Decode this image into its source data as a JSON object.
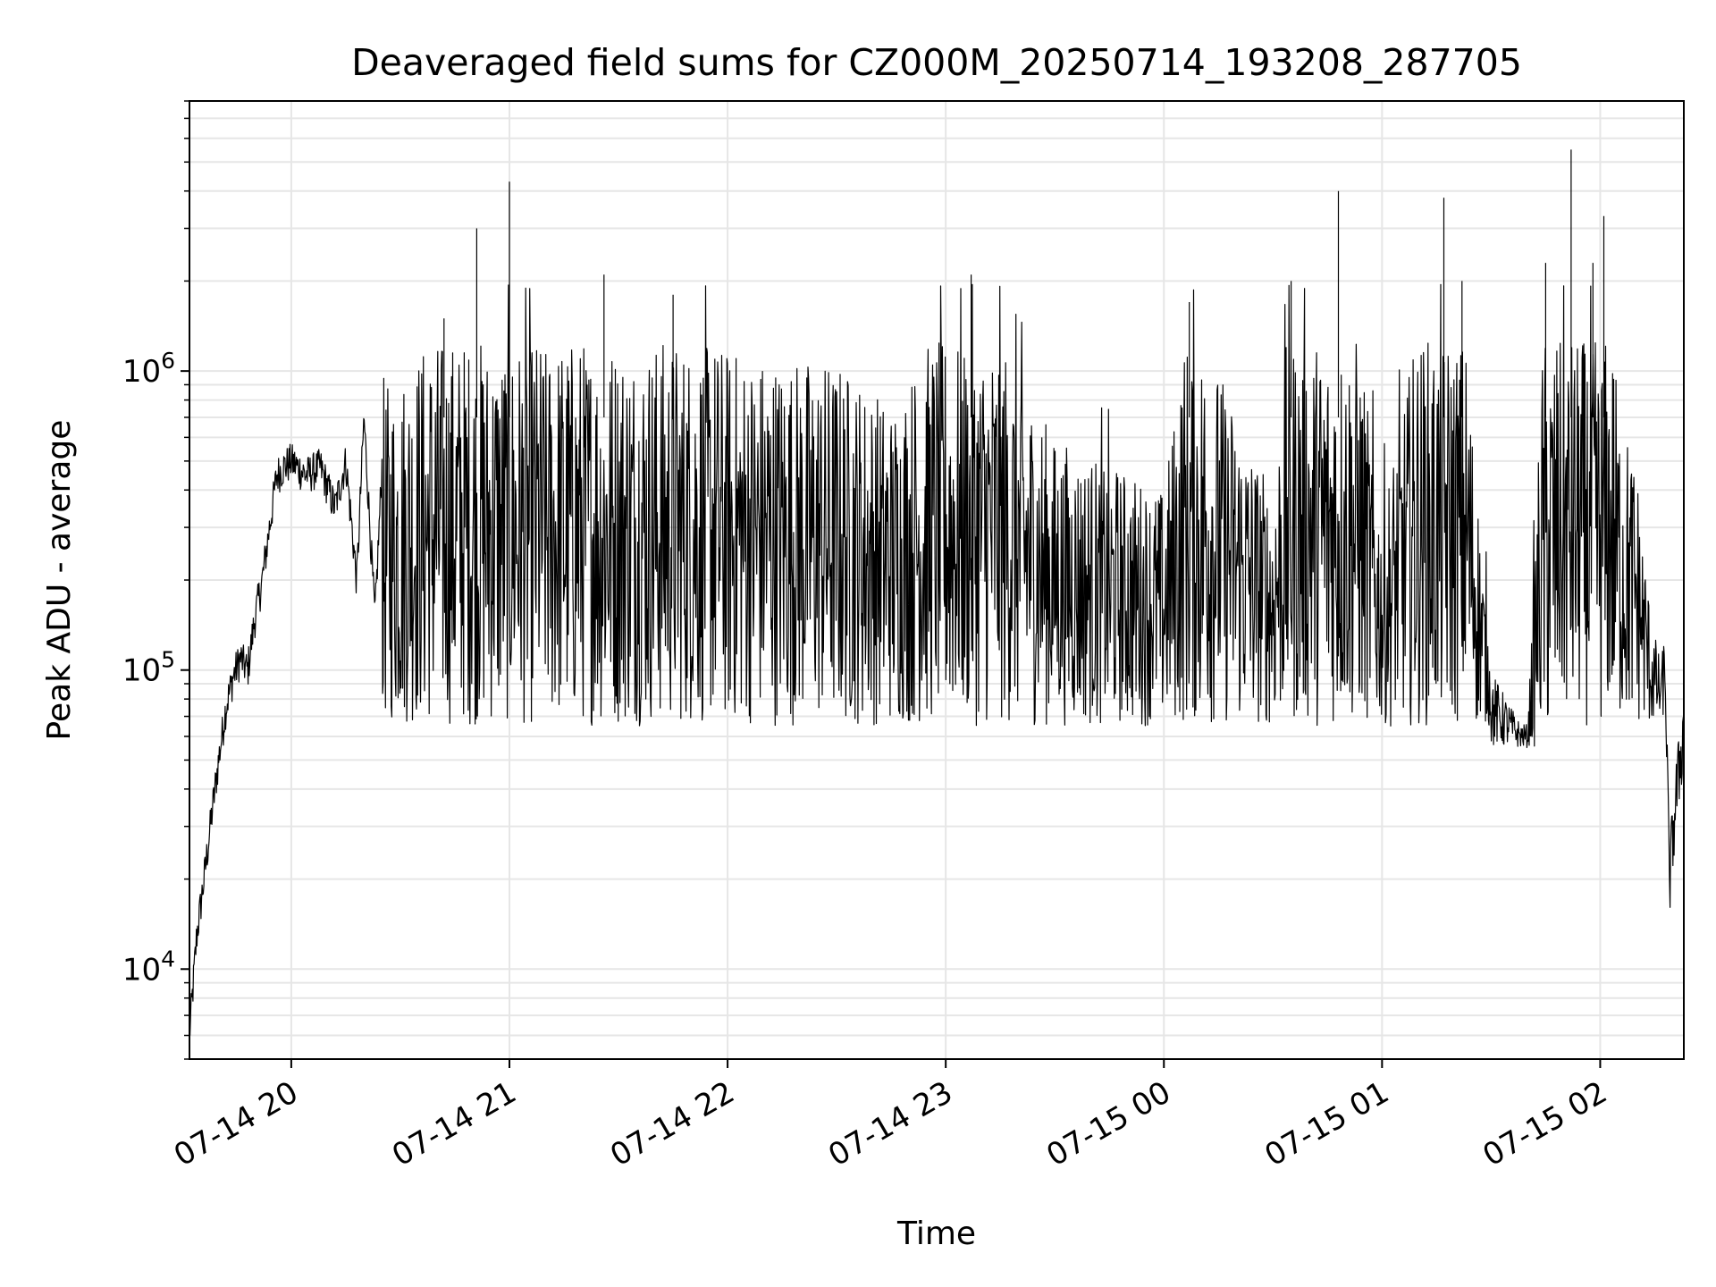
{
  "chart_data": {
    "type": "line",
    "title": "Deaveraged field sums for CZ000M_20250714_193208_287705",
    "xlabel": "Time",
    "ylabel": "Peak ADU - average",
    "yscale": "log",
    "ylim": [
      5000,
      8000000
    ],
    "xlim": [
      "2025-07-14 19:32",
      "2025-07-15 02:23"
    ],
    "grid": true,
    "legend": "none",
    "x_ticks": [
      {
        "t": "2025-07-14 20:00",
        "label": "07-14 20"
      },
      {
        "t": "2025-07-14 21:00",
        "label": "07-14 21"
      },
      {
        "t": "2025-07-14 22:00",
        "label": "07-14 22"
      },
      {
        "t": "2025-07-14 23:00",
        "label": "07-14 23"
      },
      {
        "t": "2025-07-15 00:00",
        "label": "07-15 00"
      },
      {
        "t": "2025-07-15 01:00",
        "label": "07-15 01"
      },
      {
        "t": "2025-07-15 02:00",
        "label": "07-15 02"
      }
    ],
    "y_ticks": [
      {
        "value": 10000,
        "base": "10",
        "exp": "4"
      },
      {
        "value": 100000,
        "base": "10",
        "exp": "5"
      },
      {
        "value": 1000000,
        "base": "10",
        "exp": "6"
      }
    ],
    "line_color": "#000000",
    "series": [
      {
        "points": [
          [
            "2025-07-14 19:32",
            6000
          ],
          [
            "2025-07-14 19:34",
            13000
          ],
          [
            "2025-07-14 19:36",
            20000
          ],
          [
            "2025-07-14 19:38",
            32000
          ],
          [
            "2025-07-14 19:40",
            50000
          ],
          [
            "2025-07-14 19:42",
            75000
          ],
          [
            "2025-07-14 19:44",
            95000
          ],
          [
            "2025-07-14 19:46",
            110000
          ],
          [
            "2025-07-14 19:48",
            100000
          ],
          [
            "2025-07-14 19:50",
            150000
          ],
          [
            "2025-07-14 19:52",
            200000
          ],
          [
            "2025-07-14 19:54",
            300000
          ],
          [
            "2025-07-14 19:56",
            450000
          ],
          [
            "2025-07-14 19:58",
            480000
          ],
          [
            "2025-07-14 20:00",
            500000
          ],
          [
            "2025-07-14 20:04",
            450000
          ],
          [
            "2025-07-14 20:08",
            480000
          ],
          [
            "2025-07-14 20:12",
            350000
          ],
          [
            "2025-07-14 20:15",
            500000
          ],
          [
            "2025-07-14 20:18",
            200000
          ],
          [
            "2025-07-14 20:20",
            700000
          ],
          [
            "2025-07-14 20:23",
            150000
          ],
          [
            "2025-07-14 20:26",
            900000
          ],
          [
            "2025-07-14 20:42",
            1500000
          ],
          [
            "2025-07-14 20:51",
            3000000
          ],
          [
            "2025-07-14 20:57",
            1300000
          ],
          [
            "2025-07-14 21:00",
            4300000
          ],
          [
            "2025-07-14 21:10",
            1200000
          ],
          [
            "2025-07-14 21:26",
            2100000
          ],
          [
            "2025-07-14 21:45",
            1800000
          ],
          [
            "2025-07-14 22:00",
            1200000
          ],
          [
            "2025-07-14 22:30",
            1100000
          ],
          [
            "2025-07-14 22:45",
            800000
          ],
          [
            "2025-07-14 23:07",
            2100000
          ],
          [
            "2025-07-14 23:30",
            600000
          ],
          [
            "2025-07-14 23:45",
            500000
          ],
          [
            "2025-07-15 00:00",
            400000
          ],
          [
            "2025-07-15 00:07",
            1700000
          ],
          [
            "2025-07-15 00:30",
            400000
          ],
          [
            "2025-07-15 00:35",
            2000000
          ],
          [
            "2025-07-15 00:48",
            4000000
          ],
          [
            "2025-07-15 01:00",
            350000
          ],
          [
            "2025-07-15 01:17",
            3800000
          ],
          [
            "2025-07-15 01:22",
            2000000
          ],
          [
            "2025-07-15 01:30",
            100000
          ],
          [
            "2025-07-15 01:40",
            60000
          ],
          [
            "2025-07-15 01:45",
            2300000
          ],
          [
            "2025-07-15 01:52",
            5500000
          ],
          [
            "2025-07-15 01:58",
            2300000
          ],
          [
            "2025-07-15 02:00",
            900000
          ],
          [
            "2025-07-15 02:01",
            3300000
          ],
          [
            "2025-07-15 02:05",
            800000
          ],
          [
            "2025-07-15 02:10",
            500000
          ],
          [
            "2025-07-15 02:14",
            150000
          ],
          [
            "2025-07-15 02:18",
            90000
          ],
          [
            "2025-07-15 02:19",
            20000
          ],
          [
            "2025-07-15 02:21",
            40000
          ],
          [
            "2025-07-15 02:23",
            65000
          ]
        ]
      }
    ]
  }
}
